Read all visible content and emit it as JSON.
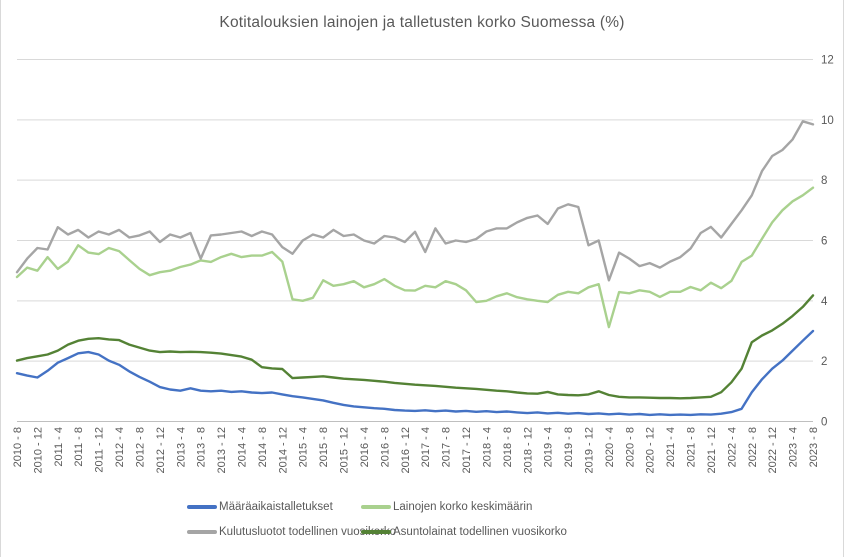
{
  "title": "Kotitalouksien lainojen ja talletusten korko Suomessa (%)",
  "colors": {
    "background": "#FFFFFF",
    "title_text": "#595959",
    "axis_text": "#595959",
    "gridline": "#D9D9D9",
    "axis_line": "#BFBFBF"
  },
  "chart_data": {
    "type": "line",
    "title": "Kotitalouksien lainojen ja talletusten korko Suomessa (%)",
    "grid": true,
    "legend_position": "bottom",
    "y_axis": {
      "side": "right",
      "min": 0,
      "max": 12,
      "step": 2,
      "ticks": [
        "0",
        "2",
        "4",
        "6",
        "8",
        "10",
        "12"
      ]
    },
    "x_axis": {
      "note": "monthly category axis from 2010-8 to 2023-8, labels every 4 months, series sampled every 2 months",
      "tick_labels": [
        "2010 - 8",
        "2010 - 12",
        "2011 - 4",
        "2011 - 8",
        "2011 - 12",
        "2012 - 4",
        "2012 - 8",
        "2012 - 12",
        "2013 - 4",
        "2013 - 8",
        "2013 - 12",
        "2014 - 4",
        "2014 - 8",
        "2014 - 12",
        "2015 - 4",
        "2015 - 8",
        "2015 - 12",
        "2016 - 4",
        "2016 - 8",
        "2016 - 12",
        "2017 - 4",
        "2017 - 8",
        "2017 - 12",
        "2018 - 4",
        "2018 - 8",
        "2018 - 12",
        "2019 - 4",
        "2019 - 8",
        "2019 - 12",
        "2020 - 4",
        "2020 - 8",
        "2020 - 12",
        "2021 - 4",
        "2021 - 8",
        "2021 - 12",
        "2022 - 4",
        "2022 - 8",
        "2022 - 12",
        "2023 - 4",
        "2023 - 8"
      ]
    },
    "samples_per_tick_interval": 2,
    "series": [
      {
        "name": "Määräaikaistalletukset",
        "color": "#4472C4",
        "values": [
          1.6,
          1.52,
          1.46,
          1.68,
          1.95,
          2.1,
          2.26,
          2.3,
          2.22,
          2.02,
          1.88,
          1.66,
          1.48,
          1.32,
          1.14,
          1.06,
          1.02,
          1.1,
          1.02,
          1.0,
          1.02,
          0.98,
          1.0,
          0.96,
          0.94,
          0.96,
          0.9,
          0.84,
          0.8,
          0.75,
          0.7,
          0.62,
          0.55,
          0.5,
          0.47,
          0.44,
          0.42,
          0.38,
          0.36,
          0.35,
          0.37,
          0.34,
          0.36,
          0.33,
          0.35,
          0.32,
          0.34,
          0.31,
          0.33,
          0.3,
          0.28,
          0.3,
          0.27,
          0.29,
          0.26,
          0.28,
          0.25,
          0.27,
          0.24,
          0.26,
          0.23,
          0.25,
          0.22,
          0.24,
          0.22,
          0.23,
          0.22,
          0.24,
          0.23,
          0.26,
          0.31,
          0.42,
          0.97,
          1.4,
          1.75,
          2.02,
          2.35,
          2.68,
          3.0
        ]
      },
      {
        "name": "Lainojen korko keskimäärin",
        "color": "#A9D18E",
        "values": [
          4.79,
          5.1,
          5.0,
          5.45,
          5.06,
          5.3,
          5.84,
          5.6,
          5.55,
          5.75,
          5.65,
          5.35,
          5.06,
          4.85,
          4.95,
          5.0,
          5.12,
          5.2,
          5.34,
          5.29,
          5.45,
          5.56,
          5.45,
          5.5,
          5.5,
          5.62,
          5.3,
          4.05,
          4.0,
          4.1,
          4.68,
          4.5,
          4.55,
          4.65,
          4.45,
          4.55,
          4.72,
          4.5,
          4.35,
          4.34,
          4.5,
          4.45,
          4.65,
          4.55,
          4.35,
          3.96,
          4.0,
          4.15,
          4.25,
          4.12,
          4.05,
          4.0,
          3.96,
          4.2,
          4.3,
          4.25,
          4.45,
          4.55,
          3.13,
          4.29,
          4.25,
          4.35,
          4.3,
          4.13,
          4.3,
          4.3,
          4.46,
          4.35,
          4.6,
          4.42,
          4.66,
          5.29,
          5.5,
          6.06,
          6.6,
          7.0,
          7.3,
          7.5,
          7.75
        ]
      },
      {
        "name": "Kulutusluotot todellinen vuosikorko",
        "color": "#A5A5A5",
        "values": [
          4.95,
          5.4,
          5.75,
          5.7,
          6.44,
          6.2,
          6.35,
          6.1,
          6.3,
          6.2,
          6.35,
          6.1,
          6.17,
          6.3,
          5.95,
          6.2,
          6.1,
          6.25,
          5.4,
          6.17,
          6.2,
          6.25,
          6.3,
          6.15,
          6.3,
          6.2,
          5.78,
          5.56,
          6.0,
          6.2,
          6.1,
          6.35,
          6.15,
          6.2,
          6.0,
          5.9,
          6.15,
          6.1,
          5.95,
          6.29,
          5.62,
          6.4,
          5.9,
          6.0,
          5.95,
          6.05,
          6.3,
          6.4,
          6.4,
          6.6,
          6.75,
          6.83,
          6.55,
          7.06,
          7.2,
          7.11,
          5.84,
          6.0,
          4.68,
          5.6,
          5.4,
          5.15,
          5.25,
          5.1,
          5.3,
          5.45,
          5.73,
          6.25,
          6.45,
          6.1,
          6.55,
          7.0,
          7.5,
          8.3,
          8.8,
          9.0,
          9.35,
          9.95,
          9.85
        ]
      },
      {
        "name": "Asuntolainat todellinen vuosikorko",
        "color": "#548235",
        "values": [
          2.02,
          2.1,
          2.16,
          2.22,
          2.35,
          2.55,
          2.68,
          2.74,
          2.76,
          2.72,
          2.7,
          2.55,
          2.45,
          2.35,
          2.3,
          2.32,
          2.3,
          2.31,
          2.3,
          2.28,
          2.25,
          2.2,
          2.15,
          2.05,
          1.8,
          1.76,
          1.74,
          1.44,
          1.46,
          1.48,
          1.5,
          1.46,
          1.42,
          1.4,
          1.38,
          1.35,
          1.32,
          1.28,
          1.25,
          1.22,
          1.2,
          1.18,
          1.15,
          1.12,
          1.1,
          1.08,
          1.05,
          1.02,
          1.0,
          0.96,
          0.93,
          0.92,
          0.98,
          0.9,
          0.88,
          0.87,
          0.9,
          1.0,
          0.88,
          0.82,
          0.8,
          0.8,
          0.79,
          0.78,
          0.78,
          0.77,
          0.78,
          0.8,
          0.82,
          0.97,
          1.3,
          1.75,
          2.63,
          2.85,
          3.02,
          3.24,
          3.5,
          3.8,
          4.18
        ]
      }
    ]
  },
  "legend": {
    "rows": [
      {
        "items": [
          0,
          1
        ]
      },
      {
        "items": [
          2,
          3
        ]
      }
    ]
  }
}
